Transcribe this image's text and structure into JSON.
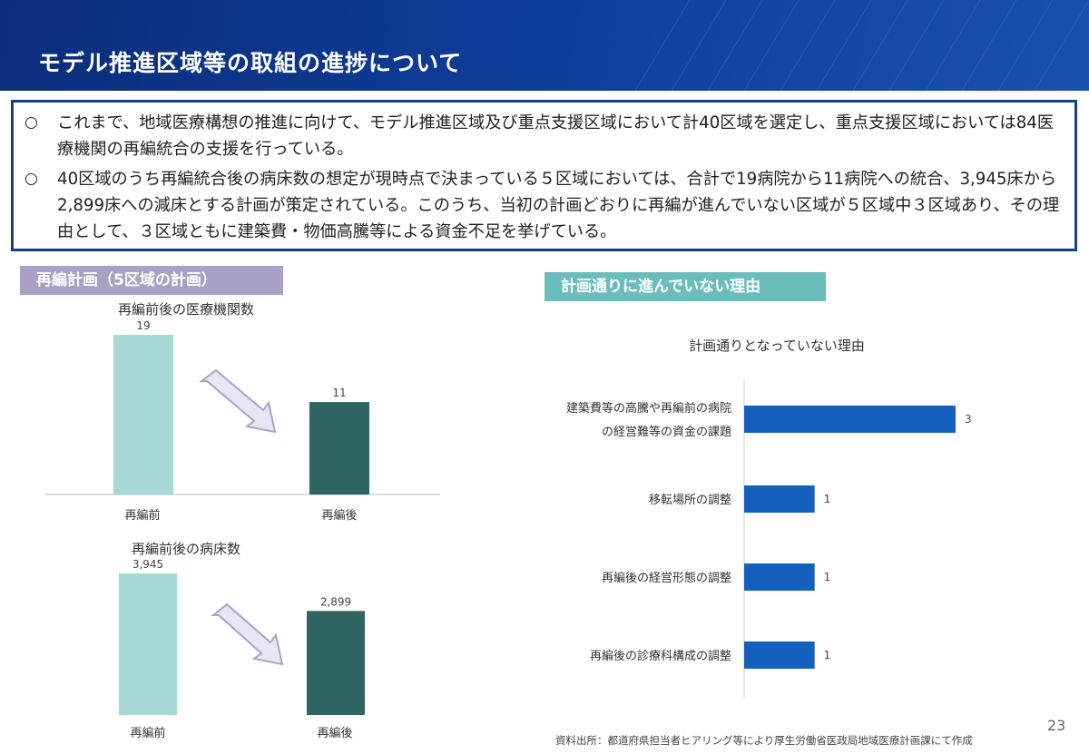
{
  "header": {
    "title": "モデル推進区域等の取組の進捗について"
  },
  "summary": {
    "bullet_mark": "○",
    "bullets": [
      "これまで、地域医療構想の推進に向けて、モデル推進区域及び重点支援区域において計40区域を選定し、重点支援区域においては84医療機関の再編統合の支援を行っている。",
      "40区域のうち再編統合後の病床数の想定が現時点で決まっている５区域においては、合計で19病院から11病院への統合、3,945床から2,899床への減床とする計画が策定されている。このうち、当初の計画どおりに再編が進んでいない区域が５区域中３区域あり、その理由として、３区域ともに建築費・物価高騰等による資金不足を挙げている。"
    ]
  },
  "left_section": {
    "tag": "再編計画（5区域の計画）"
  },
  "right_section": {
    "tag": "計画通りに進んでいない理由"
  },
  "colors": {
    "before_bar": "#a7d9d7",
    "after_bar": "#2e6461",
    "reason_bar": "#1560bd",
    "arrow_fill": "#e7e6f3",
    "arrow_stroke": "#a9a3c9"
  },
  "chart_data": [
    {
      "type": "bar",
      "title": "再編前後の医療機関数",
      "categories": [
        "再編前",
        "再編後"
      ],
      "values": [
        19,
        11
      ],
      "value_labels": [
        "19",
        "11"
      ],
      "ylim": [
        0,
        19
      ]
    },
    {
      "type": "bar",
      "title": "再編前後の病床数",
      "categories": [
        "再編前",
        "再編後"
      ],
      "values": [
        3945,
        2899
      ],
      "value_labels": [
        "3,945",
        "2,899"
      ],
      "ylim": [
        0,
        3945
      ]
    },
    {
      "type": "bar",
      "orientation": "horizontal",
      "title": "計画通りとなっていない理由",
      "categories": [
        [
          "建築費等の高騰や再編前の病院",
          "の経営難等の資金の課題"
        ],
        [
          "移転場所の調整"
        ],
        [
          "再編後の経営形態の調整"
        ],
        [
          "再編後の診療科構成の調整"
        ]
      ],
      "values": [
        3,
        1,
        1,
        1
      ],
      "xlim": [
        0,
        3
      ]
    }
  ],
  "source": "資料出所：都道府県担当者ヒアリング等により厚生労働省医政局地域医療計画課にて作成",
  "page_number": "23"
}
